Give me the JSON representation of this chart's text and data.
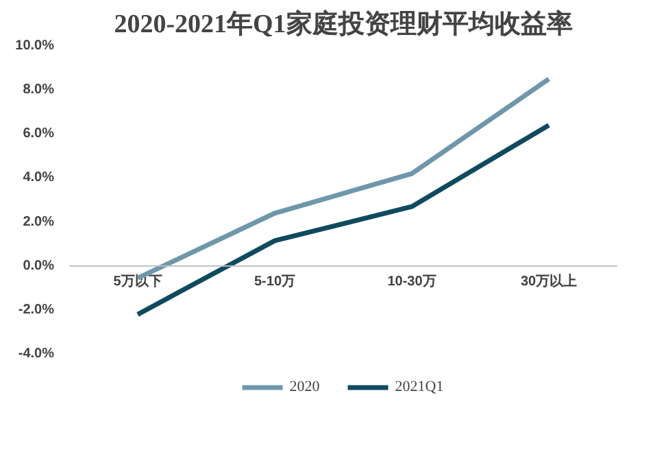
{
  "chart_data": {
    "type": "line",
    "title": "2020-2021年Q1家庭投资理财平均收益率",
    "categories": [
      "5万以下",
      "5-10万",
      "10-30万",
      "30万以上"
    ],
    "series": [
      {
        "name": "2020",
        "color": "#6f97ab",
        "values": [
          -0.55,
          2.4,
          4.2,
          8.5
        ]
      },
      {
        "name": "2021Q1",
        "color": "#0f4a5e",
        "values": [
          -2.2,
          1.15,
          2.7,
          6.4
        ]
      }
    ],
    "ylim": [
      -4,
      10
    ],
    "yticks": [
      {
        "value": -4,
        "label": "-4.0%"
      },
      {
        "value": -2,
        "label": "-2.0%"
      },
      {
        "value": 0,
        "label": "0.0%"
      },
      {
        "value": 2,
        "label": "2.0%"
      },
      {
        "value": 4,
        "label": "4.0%"
      },
      {
        "value": 6,
        "label": "6.0%"
      },
      {
        "value": 8,
        "label": "8.0%"
      },
      {
        "value": 10,
        "label": "10.0%"
      }
    ],
    "grid": false,
    "legend": "bottom",
    "marker": "none",
    "line_style": "solid"
  }
}
